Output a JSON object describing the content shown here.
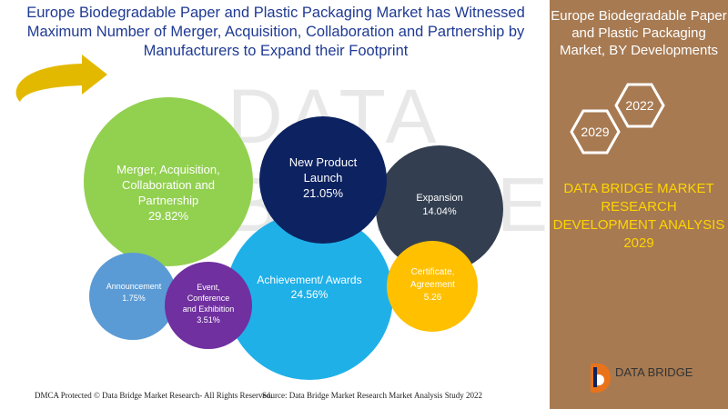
{
  "title": "Europe Biodegradable Paper and Plastic Packaging Market has Witnessed Maximum Number of Merger, Acquisition, Collaboration and Partnership by Manufacturers to Expand their Footprint",
  "side_panel": {
    "title": "Europe Biodegradable Paper and Plastic Packaging Market, BY Developments",
    "year_start": "2022",
    "year_end": "2029",
    "analysis_label": "DATA BRIDGE MARKET RESEARCH DEVELOPMENT ANALYSIS 2029"
  },
  "watermark": "DATA BRIDGE",
  "brand": {
    "name": "DATA BRIDGE"
  },
  "footer": {
    "copyright": "DMCA Protected © Data Bridge Market Research- All Rights Reserved.",
    "source": "Source: Data Bridge Market Research Market Analysis Study 2022"
  },
  "chart_data": {
    "type": "bubble",
    "title": "",
    "series": [
      {
        "label": "Merger, Acquisition, Collaboration and Partnership",
        "value_text": "29.82%",
        "value": 29.82,
        "color": "#92d050"
      },
      {
        "label": "New Product Launch",
        "value_text": "21.05%",
        "value": 21.05,
        "color": "#0d2260"
      },
      {
        "label": "Expansion",
        "value_text": "14.04%",
        "value": 14.04,
        "color": "#333f50"
      },
      {
        "label": "Achievement/ Awards",
        "value_text": "24.56%",
        "value": 24.56,
        "color": "#1fb0e8"
      },
      {
        "label": "Certificate, Agreement",
        "value_text": "5.26",
        "value": 5.26,
        "color": "#ffc000"
      },
      {
        "label": "Announcement",
        "value_text": "1.75%",
        "value": 1.75,
        "color": "#5b9bd5"
      },
      {
        "label": "Event, Conference and Exhibition",
        "value_text": "3.51%",
        "value": 3.51,
        "color": "#7030a0"
      }
    ]
  },
  "colors": {
    "title": "#1f3a93",
    "side_panel_bg": "#a77a52",
    "side_analysis": "#ffd400",
    "arrow": "#e3b900"
  }
}
